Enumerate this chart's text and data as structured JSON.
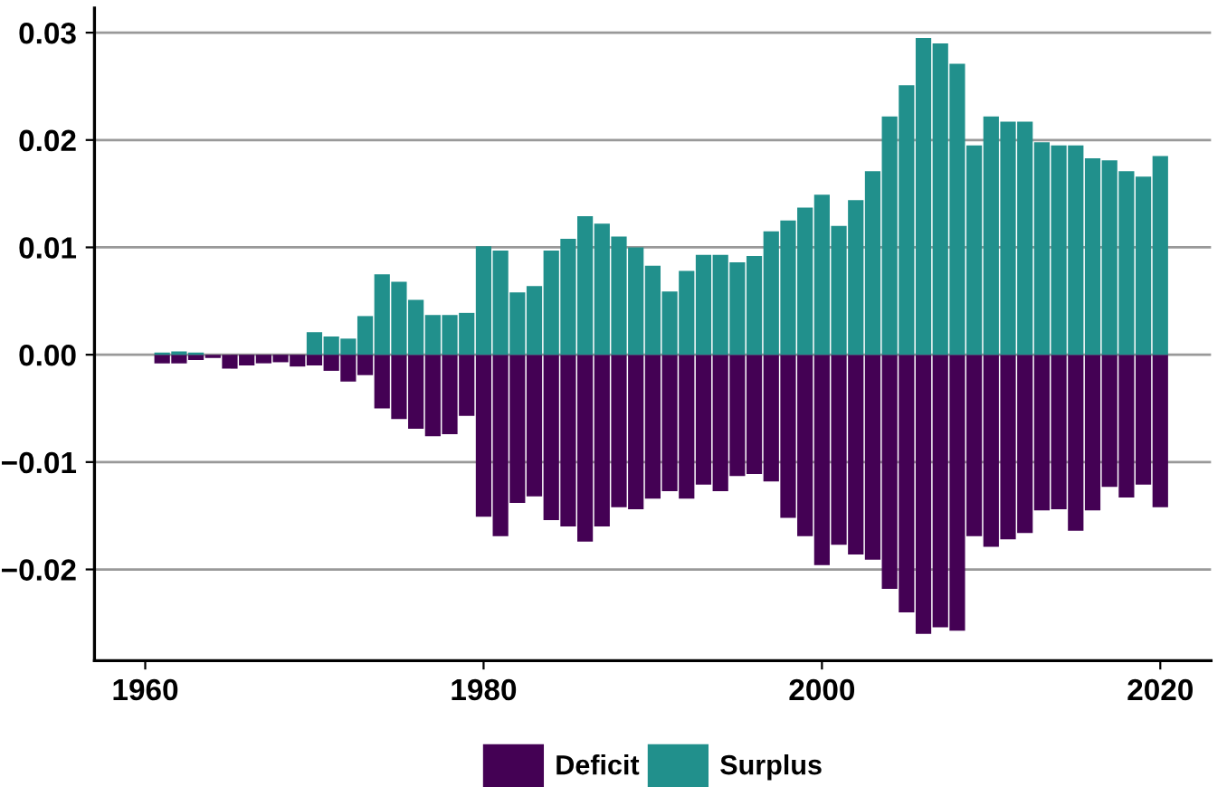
{
  "chart_data": {
    "type": "bar",
    "stacked": true,
    "x": [
      1961,
      1962,
      1963,
      1964,
      1965,
      1966,
      1967,
      1968,
      1969,
      1970,
      1971,
      1972,
      1973,
      1974,
      1975,
      1976,
      1977,
      1978,
      1979,
      1980,
      1981,
      1982,
      1983,
      1984,
      1985,
      1986,
      1987,
      1988,
      1989,
      1990,
      1991,
      1992,
      1993,
      1994,
      1995,
      1996,
      1997,
      1998,
      1999,
      2000,
      2001,
      2002,
      2003,
      2004,
      2005,
      2006,
      2007,
      2008,
      2009,
      2010,
      2011,
      2012,
      2013,
      2014,
      2015,
      2016,
      2017,
      2018,
      2019,
      2020
    ],
    "series": [
      {
        "name": "Deficit",
        "color": "#440154",
        "values": [
          -0.0008,
          -0.0008,
          -0.0005,
          -0.0003,
          -0.0013,
          -0.001,
          -0.0008,
          -0.0007,
          -0.0011,
          -0.001,
          -0.0015,
          -0.0025,
          -0.0019,
          -0.005,
          -0.006,
          -0.0069,
          -0.0076,
          -0.0074,
          -0.0057,
          -0.0151,
          -0.0169,
          -0.0138,
          -0.0132,
          -0.0154,
          -0.016,
          -0.0174,
          -0.016,
          -0.0142,
          -0.0144,
          -0.0134,
          -0.0127,
          -0.0134,
          -0.0121,
          -0.0127,
          -0.0113,
          -0.0111,
          -0.0118,
          -0.0152,
          -0.0169,
          -0.0196,
          -0.0177,
          -0.0186,
          -0.0191,
          -0.0218,
          -0.024,
          -0.026,
          -0.0254,
          -0.0257,
          -0.0169,
          -0.0179,
          -0.0172,
          -0.0166,
          -0.0145,
          -0.0144,
          -0.0164,
          -0.0145,
          -0.0123,
          -0.0133,
          -0.0121,
          -0.0142
        ]
      },
      {
        "name": "Surplus",
        "color": "#21908c",
        "values": [
          0.0002,
          0.0003,
          0.0002,
          0,
          0,
          0,
          0,
          0,
          0,
          0.0021,
          0.0017,
          0.0015,
          0.0036,
          0.0075,
          0.0068,
          0.0051,
          0.0037,
          0.0037,
          0.0039,
          0.0101,
          0.0097,
          0.0058,
          0.0064,
          0.0097,
          0.0108,
          0.0129,
          0.0122,
          0.011,
          0.01,
          0.0083,
          0.0059,
          0.0078,
          0.0093,
          0.0093,
          0.0086,
          0.0092,
          0.0115,
          0.0125,
          0.0137,
          0.0149,
          0.012,
          0.0144,
          0.0171,
          0.0222,
          0.0251,
          0.0295,
          0.029,
          0.0271,
          0.0195,
          0.0222,
          0.0217,
          0.0217,
          0.0198,
          0.0195,
          0.0195,
          0.0183,
          0.0181,
          0.0171,
          0.0166,
          0.0185
        ]
      }
    ],
    "xlim": [
      1957,
      2023
    ],
    "xticks": [
      1960,
      1980,
      2000,
      2020
    ],
    "ylim": [
      -0.0285,
      0.0323
    ],
    "yticks": [
      {
        "value": -0.02,
        "label": "−0.02"
      },
      {
        "value": -0.01,
        "label": "−0.01"
      },
      {
        "value": 0,
        "label": "0.00"
      },
      {
        "value": 0.01,
        "label": "0.01"
      },
      {
        "value": 0.02,
        "label": "0.02"
      },
      {
        "value": 0.03,
        "label": "0.03"
      }
    ],
    "grid": "y",
    "legend": "bottom"
  }
}
